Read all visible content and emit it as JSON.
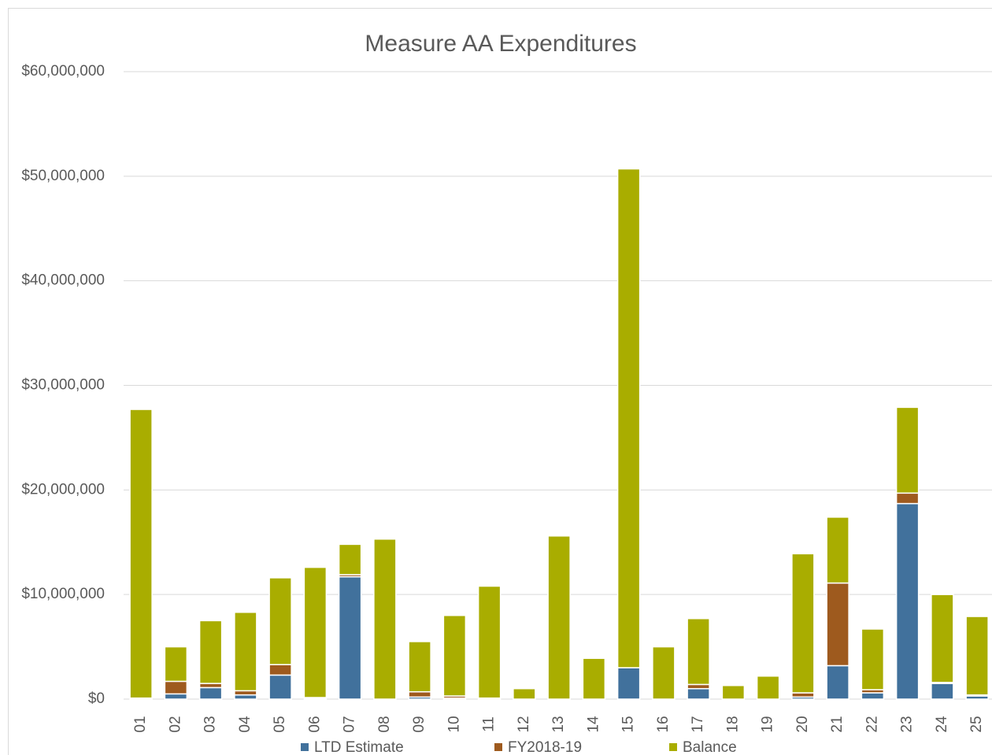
{
  "chart_data": {
    "type": "stacked_bar",
    "title": "Measure AA Expenditures",
    "categories": [
      "01",
      "02",
      "03",
      "04",
      "05",
      "06",
      "07",
      "08",
      "09",
      "10",
      "11",
      "12",
      "13",
      "14",
      "15",
      "16",
      "17",
      "18",
      "19",
      "20",
      "21",
      "22",
      "23",
      "24",
      "25"
    ],
    "series": [
      {
        "name": "LTD Estimate",
        "color": "#41719c",
        "values": [
          0,
          500000,
          1100000,
          400000,
          2300000,
          100000,
          11700000,
          0,
          200000,
          100000,
          100000,
          0,
          0,
          0,
          3000000,
          0,
          1000000,
          0,
          0,
          200000,
          3200000,
          600000,
          18700000,
          1500000,
          300000
        ]
      },
      {
        "name": "FY2018-19",
        "color": "#9e5a1e",
        "values": [
          100000,
          1200000,
          400000,
          400000,
          1000000,
          50000,
          200000,
          0,
          500000,
          200000,
          0,
          0,
          0,
          0,
          0,
          0,
          400000,
          0,
          0,
          400000,
          7900000,
          300000,
          1000000,
          100000,
          100000
        ]
      },
      {
        "name": "Balance",
        "color": "#a9ad00",
        "values": [
          27600000,
          3300000,
          6000000,
          7500000,
          8300000,
          12450000,
          2900000,
          15300000,
          4800000,
          7700000,
          10700000,
          1000000,
          15600000,
          3900000,
          47700000,
          5000000,
          6300000,
          1300000,
          2200000,
          13300000,
          6300000,
          5800000,
          8200000,
          8400000,
          7500000
        ]
      }
    ],
    "ylim": [
      0,
      60000000
    ],
    "yticks": [
      {
        "value": 0,
        "label": "$0"
      },
      {
        "value": 10000000,
        "label": "$10,000,000"
      },
      {
        "value": 20000000,
        "label": "$20,000,000"
      },
      {
        "value": 30000000,
        "label": "$30,000,000"
      },
      {
        "value": 40000000,
        "label": "$40,000,000"
      },
      {
        "value": 50000000,
        "label": "$50,000,000"
      },
      {
        "value": 60000000,
        "label": "$60,000,000"
      }
    ],
    "grid": true,
    "legend": "bottom"
  }
}
